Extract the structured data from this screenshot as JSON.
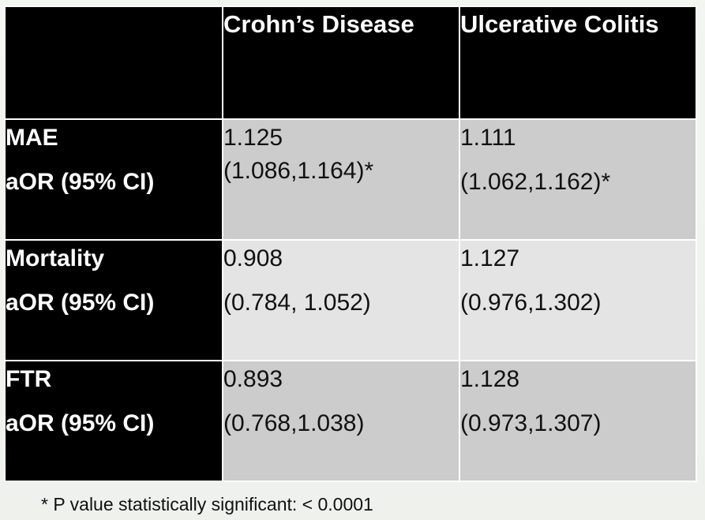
{
  "table": {
    "headers": [
      "",
      "Crohn’s Disease",
      "Ulcerative Colitis"
    ],
    "rows": [
      {
        "label": "MAE",
        "sublabel": "aOR (95% CI)",
        "crohns": {
          "value": "1.125",
          "ci": "(1.086,1.164)*"
        },
        "uc": {
          "value": "1.111",
          "ci": "(1.062,1.162)*"
        }
      },
      {
        "label": "Mortality",
        "sublabel": "aOR (95% CI)",
        "crohns": {
          "value": "0.908",
          "ci": "(0.784, 1.052)"
        },
        "uc": {
          "value": "1.127",
          "ci": "(0.976,1.302)"
        }
      },
      {
        "label": "FTR",
        "sublabel": "aOR (95% CI)",
        "crohns": {
          "value": "0.893",
          "ci": "(0.768,1.038)"
        },
        "uc": {
          "value": "1.128",
          "ci": "(0.973,1.307)"
        }
      }
    ]
  },
  "footnote": "* P value statistically significant: < 0.0001",
  "colors": {
    "header_bg": "#000000",
    "header_text": "#ffffff",
    "cell_dark": "#cccccc",
    "cell_light": "#e4e4e4"
  }
}
